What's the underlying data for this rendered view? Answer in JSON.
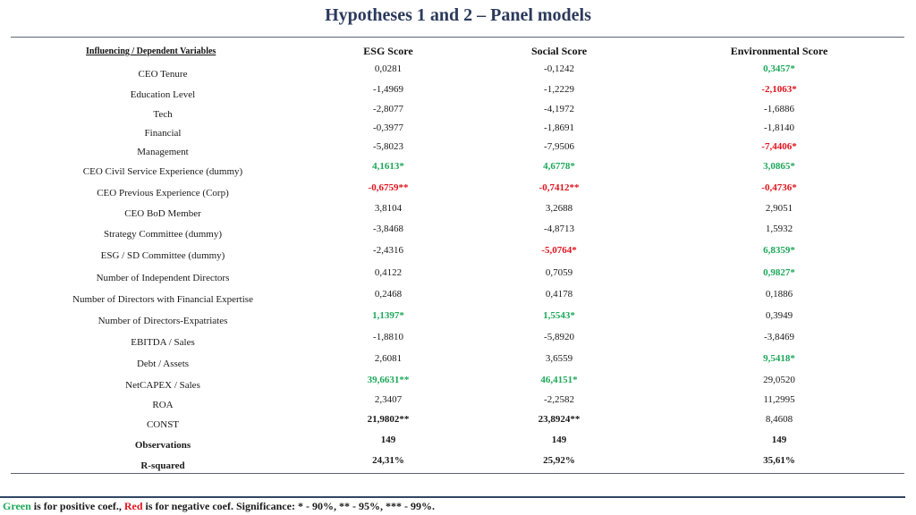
{
  "title": "Hypotheses 1 and 2 – Panel models",
  "headers": {
    "variables": "Influencing / Dependent Variables",
    "esg": "ESG Score",
    "social": "Social Score",
    "environmental": "Environmental Score"
  },
  "rows": [
    {
      "label": "CEO Tenure",
      "esg": "0,0281",
      "social": "-0,1242",
      "env": "0,3457*"
    },
    {
      "label": "Education Level",
      "esg": "-1,4969",
      "social": "-1,2229",
      "env": "-2,1063*"
    },
    {
      "label": "Tech",
      "esg": "-2,8077",
      "social": "-4,1972",
      "env": "-1,6886"
    },
    {
      "label": "Financial",
      "esg": "-0,3977",
      "social": "-1,8691",
      "env": "-1,8140"
    },
    {
      "label": "Management",
      "esg": "-5,8023",
      "social": "-7,9506",
      "env": "-7,4406*"
    },
    {
      "label": "CEO Civil Service Experience (dummy)",
      "esg": "4,1613*",
      "social": "4,6778*",
      "env": "3,0865*"
    },
    {
      "label": "CEO Previous Experience (Corp)",
      "esg": "-0,6759**",
      "social": "-0,7412**",
      "env": "-0,4736*"
    },
    {
      "label": "CEO BoD Member",
      "esg": "3,8104",
      "social": "3,2688",
      "env": "2,9051"
    },
    {
      "label": "Strategy Committee (dummy)",
      "esg": "-3,8468",
      "social": "-4,8713",
      "env": "1,5932"
    },
    {
      "label": "ESG / SD Committee (dummy)",
      "esg": "-2,4316",
      "social": "-5,0764*",
      "env": "6,8359*"
    },
    {
      "label": "Number of Independent Directors",
      "esg": "0,4122",
      "social": "0,7059",
      "env": "0,9827*"
    },
    {
      "label": "Number of Directors with Financial Expertise",
      "esg": "0,2468",
      "social": "0,4178",
      "env": "0,1886"
    },
    {
      "label": "Number of Directors-Expatriates",
      "esg": "1,1397*",
      "social": "1,5543*",
      "env": "0,3949"
    },
    {
      "label": "EBITDA / Sales",
      "esg": "-1,8810",
      "social": "-5,8920",
      "env": "-3,8469"
    },
    {
      "label": "Debt / Assets",
      "esg": "2,6081",
      "social": "3,6559",
      "env": "9,5418*"
    },
    {
      "label": "NetCAPEX / Sales",
      "esg": "39,6631**",
      "social": "46,4151*",
      "env": "29,0520"
    },
    {
      "label": "ROA",
      "esg": "2,3407",
      "social": "-2,2582",
      "env": "11,2995"
    },
    {
      "label": "CONST",
      "esg": "21,9802**",
      "social": "23,8924**",
      "env": "8,4608"
    },
    {
      "label": "Observations",
      "esg": "149",
      "social": "149",
      "env": "149"
    },
    {
      "label": "R-squared",
      "esg": "24,31%",
      "social": "25,92%",
      "env": "35,61%"
    }
  ],
  "styles": [
    [
      "",
      "",
      "pos"
    ],
    [
      "",
      "",
      "neg"
    ],
    [
      "",
      "",
      ""
    ],
    [
      "",
      "",
      ""
    ],
    [
      "",
      "",
      "neg"
    ],
    [
      "pos",
      "pos",
      "pos"
    ],
    [
      "neg",
      "neg",
      "neg"
    ],
    [
      "",
      "",
      ""
    ],
    [
      "",
      "",
      ""
    ],
    [
      "",
      "neg",
      "pos"
    ],
    [
      "",
      "",
      "pos"
    ],
    [
      "",
      "",
      ""
    ],
    [
      "pos",
      "pos",
      ""
    ],
    [
      "",
      "",
      ""
    ],
    [
      "",
      "",
      "pos"
    ],
    [
      "pos",
      "pos",
      ""
    ],
    [
      "",
      "",
      ""
    ],
    [
      "bold",
      "bold",
      ""
    ],
    [
      "bold",
      "bold",
      "bold"
    ],
    [
      "bold",
      "bold",
      "bold"
    ]
  ],
  "footer": {
    "green_word": "Green",
    "green_text": " is for positive coef., ",
    "red_word": "Red",
    "red_text": " is for negative coef.   Significance: * - 90%, ** - 95%, *** - 99%."
  },
  "colors": {
    "positive": "#1ea85a",
    "negative": "#e0141e",
    "title": "#2b3a5c"
  }
}
